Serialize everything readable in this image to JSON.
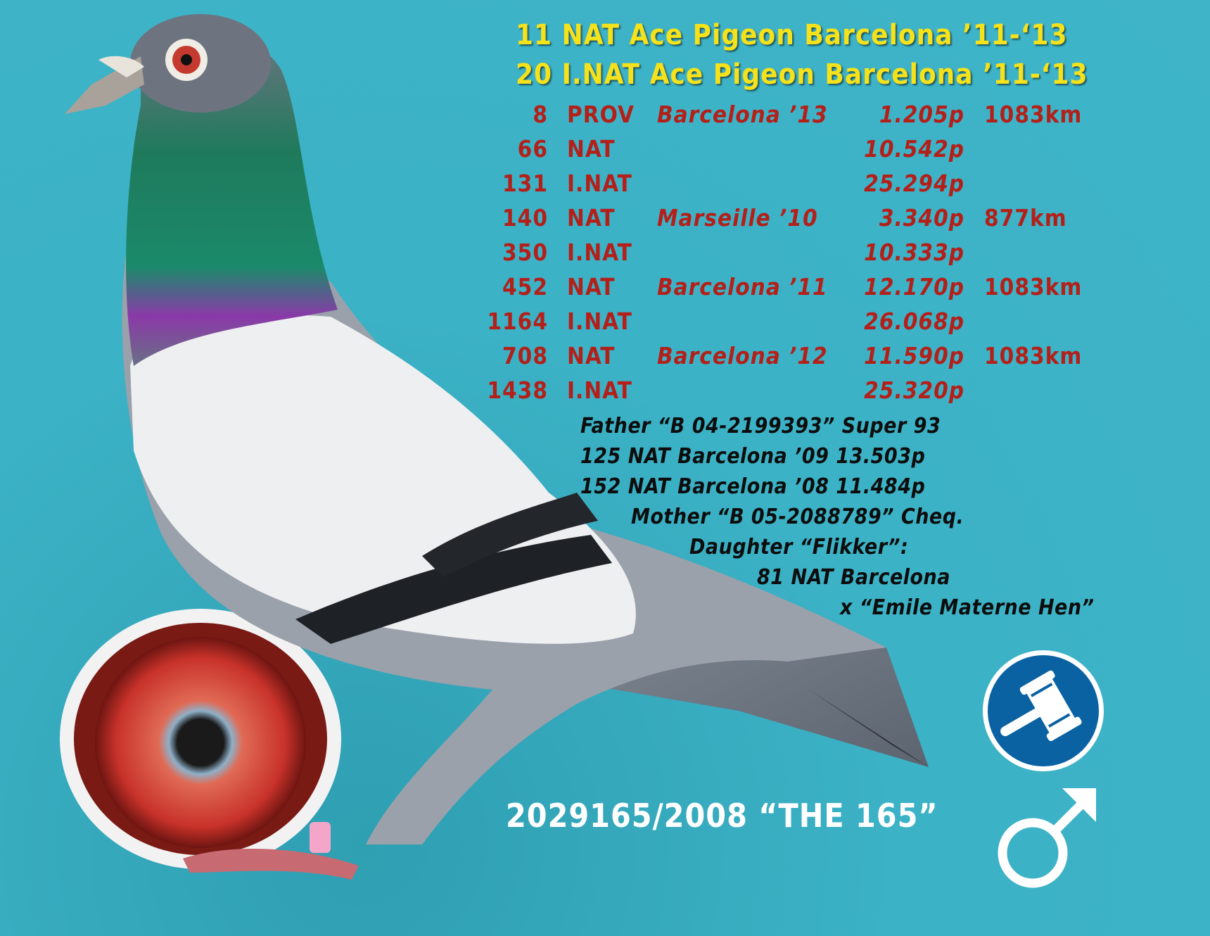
{
  "headline": [
    "11 NAT Ace Pigeon Barcelona ’11-‘13",
    "20 I.NAT Ace Pigeon Barcelona ’11-‘13"
  ],
  "results": [
    {
      "place": "8",
      "level": "PROV",
      "race": "Barcelona ’13",
      "points": "1.205p",
      "distance": "1083km"
    },
    {
      "place": "66",
      "level": "NAT",
      "race": "",
      "points": "10.542p",
      "distance": ""
    },
    {
      "place": "131",
      "level": "I.NAT",
      "race": "",
      "points": "25.294p",
      "distance": ""
    },
    {
      "place": "140",
      "level": "NAT",
      "race": "Marseille ’10",
      "points": "3.340p",
      "distance": "877km"
    },
    {
      "place": "350",
      "level": "I.NAT",
      "race": "",
      "points": "10.333p",
      "distance": ""
    },
    {
      "place": "452",
      "level": "NAT",
      "race": "Barcelona ’11",
      "points": "12.170p",
      "distance": "1083km"
    },
    {
      "place": "1164",
      "level": "I.NAT",
      "race": "",
      "points": "26.068p",
      "distance": ""
    },
    {
      "place": "708",
      "level": "NAT",
      "race": "Barcelona ’12",
      "points": "11.590p",
      "distance": "1083km"
    },
    {
      "place": "1438",
      "level": "I.NAT",
      "race": "",
      "points": "25.320p",
      "distance": ""
    }
  ],
  "pedigree": [
    "Father “B 04-2199393” Super 93",
    "125 NAT Barcelona ’09 13.503p",
    "152 NAT Barcelona ’08 11.484p",
    "Mother “B 05-2088789” Cheq.",
    "Daughter “Flikker”:",
    "81 NAT Barcelona",
    "x “Emile Materne Hen”"
  ],
  "ring_id": "2029165/2008 “THE 165”",
  "icons": {
    "auction": "gavel-icon",
    "sex": "male-symbol-icon"
  },
  "colors": {
    "background": "#3cb2c6",
    "headline": "#f6e21a",
    "results": "#b3201a",
    "pedigree": "#0d0d0d",
    "auction_badge": "#0a62a3"
  }
}
